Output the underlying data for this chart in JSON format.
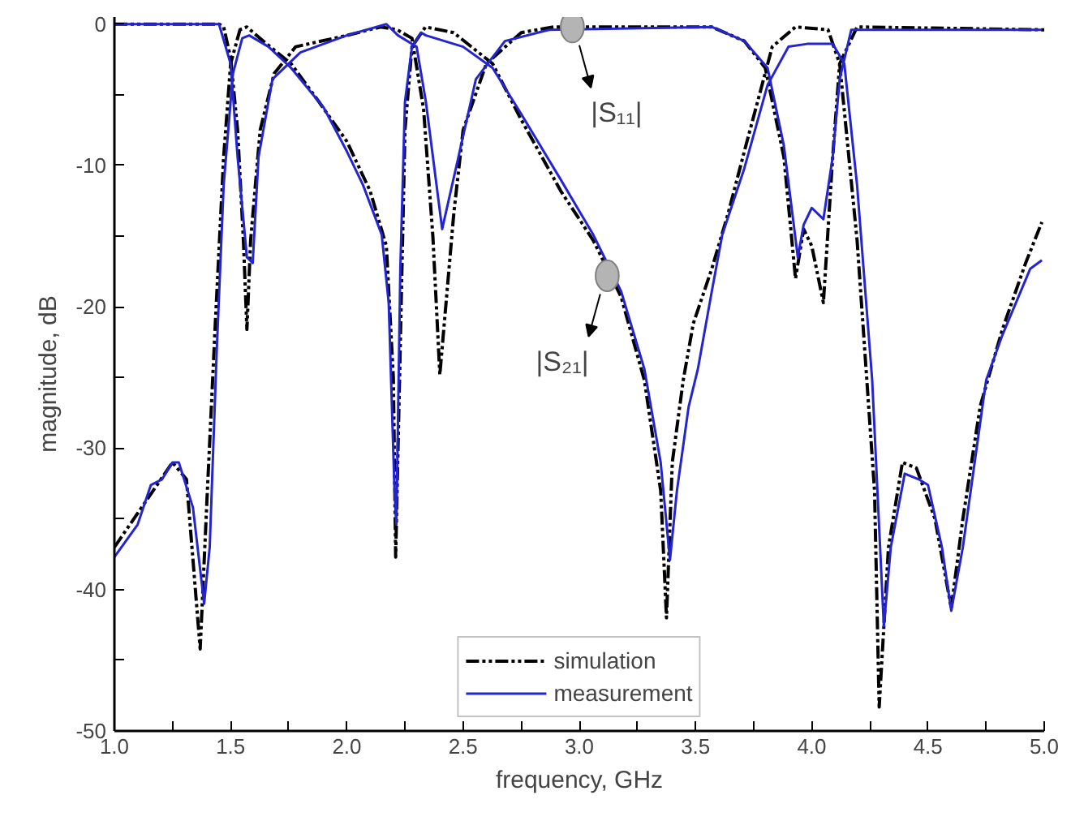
{
  "chart_data": {
    "type": "line",
    "xlabel": "frequency, GHz",
    "ylabel": "magnitude, dB",
    "xlim": [
      1.0,
      5.0
    ],
    "ylim": [
      -50,
      0.5
    ],
    "xticks": [
      {
        "value": 1.0,
        "label": "1.0"
      },
      {
        "value": 1.25,
        "label": null
      },
      {
        "value": 1.5,
        "label": "1.5"
      },
      {
        "value": 1.75,
        "label": null
      },
      {
        "value": 2.0,
        "label": "2.0"
      },
      {
        "value": 2.25,
        "label": null
      },
      {
        "value": 2.5,
        "label": "2.5"
      },
      {
        "value": 2.75,
        "label": null
      },
      {
        "value": 3.0,
        "label": "3.0"
      },
      {
        "value": 3.25,
        "label": null
      },
      {
        "value": 3.5,
        "label": "3.5"
      },
      {
        "value": 3.75,
        "label": null
      },
      {
        "value": 4.0,
        "label": "4.0"
      },
      {
        "value": 4.25,
        "label": null
      },
      {
        "value": 4.5,
        "label": "4.5"
      },
      {
        "value": 4.75,
        "label": null
      },
      {
        "value": 5.0,
        "label": "5.0"
      }
    ],
    "yticks": [
      0,
      {
        "value": -5,
        "label": null
      },
      -10,
      {
        "value": -15,
        "label": null
      },
      -20,
      {
        "value": -25,
        "label": null
      },
      -30,
      {
        "value": -35,
        "label": null
      },
      -40,
      {
        "value": -45,
        "label": null
      },
      -50
    ],
    "grid": false,
    "legend": "bottom",
    "series": [
      {
        "name": "simulation",
        "color": "#000000",
        "line_style": "dashed",
        "x": [
          1.0,
          1.1,
          1.25,
          1.31,
          1.369,
          1.4,
          1.434,
          1.47,
          1.5,
          1.54,
          1.57,
          1.64,
          1.76,
          1.88,
          2.0,
          2.1,
          2.17,
          2.2,
          2.21,
          2.25,
          2.28,
          2.338,
          2.459,
          2.627,
          2.748,
          2.92,
          3.06,
          3.18,
          3.28,
          3.35,
          3.375,
          3.4,
          3.447,
          3.49,
          3.57,
          3.64,
          3.71,
          3.83,
          3.93,
          4.07,
          4.12,
          4.195,
          4.27,
          4.29,
          4.33,
          4.39,
          4.45,
          4.53,
          4.6,
          4.65,
          4.725,
          4.82,
          4.92,
          4.99
        ],
        "values": [
          -37,
          -34.6,
          -31,
          -32.2,
          -44.2,
          -33,
          -21.2,
          -9.4,
          -2.8,
          -0.4,
          -0.2,
          -1.2,
          -2.8,
          -5.5,
          -8.3,
          -11.8,
          -15.7,
          -25,
          -37.7,
          -7.5,
          -1.6,
          -0.2,
          -0.6,
          -2.8,
          -6.7,
          -11.8,
          -15.3,
          -19.3,
          -25.2,
          -33,
          -42,
          -31,
          -25.2,
          -21.2,
          -17.3,
          -13.4,
          -9,
          -1.6,
          -0.2,
          -0.4,
          -2.8,
          -15.3,
          -33,
          -48.3,
          -37,
          -31,
          -31.4,
          -35,
          -41.3,
          -35,
          -27,
          -21.6,
          -16.9,
          -14
        ]
      },
      {
        "color": "#000000",
        "line_style": "dashed",
        "x": [
          1.0,
          1.45,
          1.47,
          1.5,
          1.53,
          1.555,
          1.57,
          1.586,
          1.627,
          1.687,
          1.78,
          2.0,
          2.145,
          2.217,
          2.28,
          2.33,
          2.37,
          2.4,
          2.46,
          2.5,
          2.6,
          2.75,
          2.89,
          3.57,
          3.71,
          3.8,
          3.88,
          3.93,
          3.965,
          4.0,
          4.05,
          4.09,
          4.12,
          4.195,
          5.0
        ],
        "values": [
          0,
          0,
          -0.2,
          -2.4,
          -7.5,
          -15.3,
          -21.6,
          -15.3,
          -7.5,
          -3.5,
          -1.6,
          -0.8,
          -0.2,
          -0.4,
          -1,
          -6,
          -15,
          -24.8,
          -13.4,
          -7.5,
          -2.8,
          -0.6,
          -0.2,
          -0.2,
          -1.2,
          -3.1,
          -9.4,
          -18,
          -14.5,
          -15.7,
          -19.7,
          -9.4,
          -2.8,
          -0.2,
          -0.4
        ]
      },
      {
        "name": "measurement",
        "color": "#2424d0",
        "line_style": "solid",
        "x": [
          1.0,
          1.1,
          1.157,
          1.205,
          1.25,
          1.277,
          1.338,
          1.386,
          1.41,
          1.44,
          1.47,
          1.51,
          1.55,
          1.58,
          1.663,
          1.76,
          1.9,
          2.0,
          2.07,
          2.15,
          2.18,
          2.205,
          2.213,
          2.23,
          2.25,
          2.28,
          2.32,
          2.34,
          2.5,
          2.627,
          2.748,
          2.92,
          3.06,
          3.18,
          3.28,
          3.35,
          3.39,
          3.42,
          3.47,
          3.51,
          3.57,
          3.615,
          3.71,
          3.81,
          3.9,
          3.98,
          4.09,
          4.14,
          4.195,
          4.26,
          4.31,
          4.34,
          4.4,
          4.46,
          4.5,
          4.56,
          4.6,
          4.65,
          4.75,
          4.82,
          4.94,
          4.99
        ],
        "values": [
          -37.7,
          -35.4,
          -32.6,
          -32.2,
          -31,
          -31,
          -34.2,
          -41,
          -37,
          -23.2,
          -11.4,
          -3.5,
          -1,
          -0.8,
          -1.6,
          -3.1,
          -5.9,
          -9,
          -11.4,
          -14.9,
          -19.7,
          -33,
          -35.4,
          -17.3,
          -5.5,
          -1.6,
          -0.6,
          -0.8,
          -1.6,
          -3.1,
          -6.3,
          -11,
          -14.9,
          -18.9,
          -24.4,
          -31,
          -37.9,
          -33,
          -27.1,
          -24.4,
          -18.9,
          -14.9,
          -10.2,
          -4.3,
          -1.6,
          -1.4,
          -1.4,
          -2.8,
          -11.4,
          -25.2,
          -42.6,
          -37,
          -31.8,
          -32.2,
          -32.6,
          -37,
          -41.5,
          -37,
          -25.2,
          -22,
          -17.3,
          -16.7
        ]
      },
      {
        "color": "#2424d0",
        "line_style": "solid",
        "x": [
          1.0,
          1.45,
          1.5,
          1.53,
          1.57,
          1.595,
          1.62,
          1.68,
          1.8,
          2.0,
          2.17,
          2.22,
          2.3,
          2.34,
          2.41,
          2.48,
          2.555,
          2.68,
          2.87,
          3.57,
          3.71,
          3.81,
          3.88,
          3.94,
          3.965,
          4.0,
          4.05,
          4.09,
          4.12,
          4.17,
          4.99
        ],
        "values": [
          0,
          0,
          -2.8,
          -9.4,
          -16.5,
          -16.9,
          -9.4,
          -3.9,
          -2,
          -0.8,
          0,
          -0.8,
          -1.6,
          -5.5,
          -14.5,
          -9.4,
          -3.9,
          -1.2,
          -0.4,
          -0.2,
          -1.2,
          -3.1,
          -8.6,
          -16.5,
          -14.2,
          -13,
          -13.8,
          -9.4,
          -3.9,
          -0.4,
          -0.4
        ]
      }
    ],
    "annotations": [
      {
        "text": "|S₁₁|",
        "x": 2.97,
        "y": -0.2
      },
      {
        "text": "|S₂₁|",
        "x": 3.12,
        "y": -17.8
      }
    ]
  }
}
